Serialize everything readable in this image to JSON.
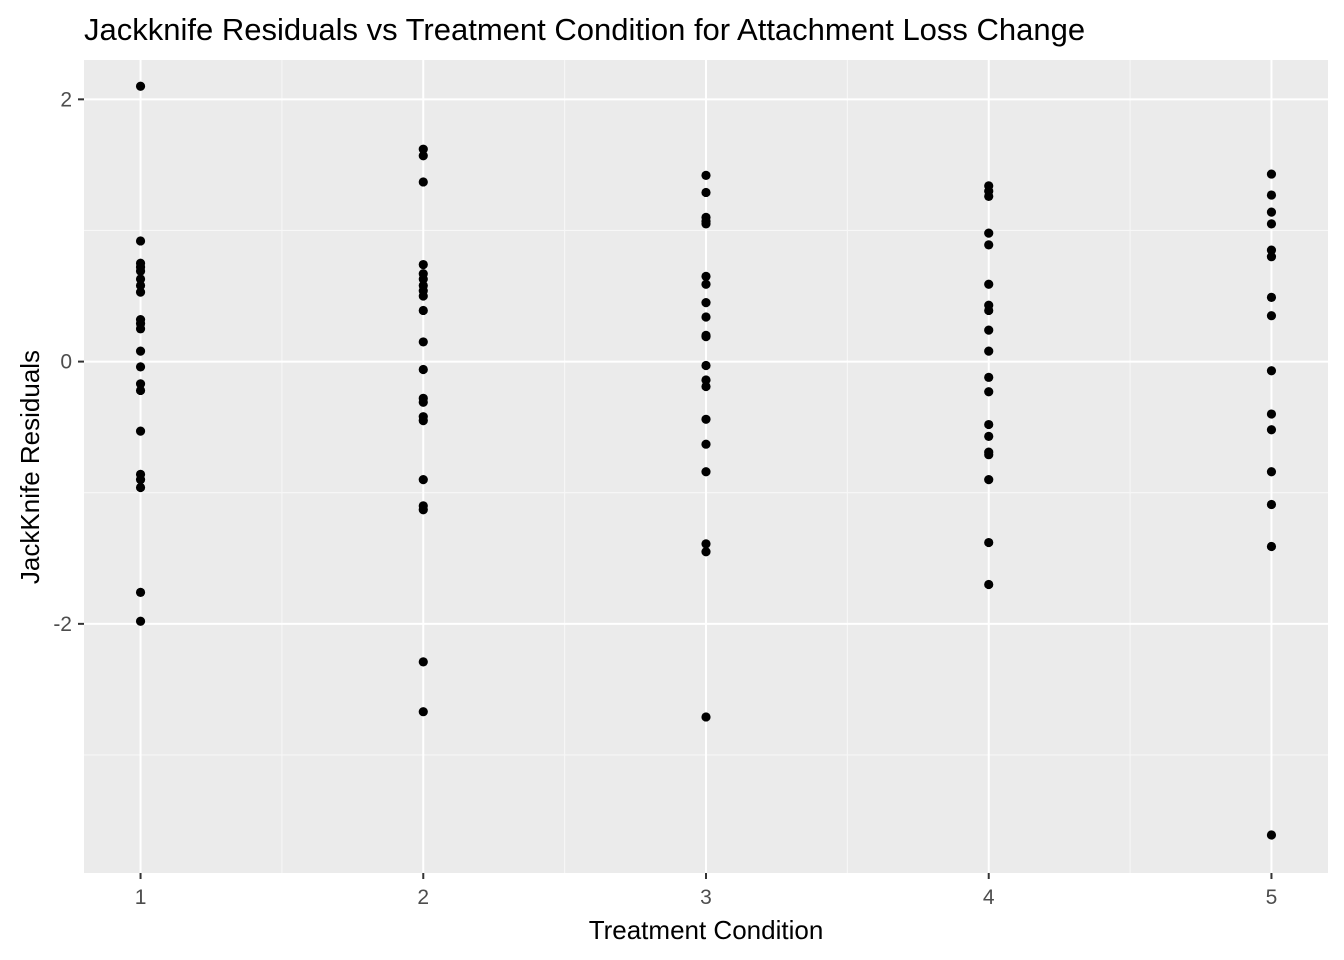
{
  "chart_data": {
    "type": "scatter",
    "title": "Jackknife Residuals vs Treatment Condition for Attachment Loss Change",
    "xlabel": "Treatment Condition",
    "ylabel": "JackKnife Residuals",
    "xlim": [
      0.8,
      5.2
    ],
    "ylim": [
      -3.9,
      2.3
    ],
    "x_ticks": [
      1,
      2,
      3,
      4,
      5
    ],
    "x_tick_labels": [
      "1",
      "2",
      "3",
      "4",
      "5"
    ],
    "y_ticks": [
      -2,
      0,
      2
    ],
    "y_tick_labels": [
      "-2",
      "0",
      "2"
    ],
    "grid": true,
    "legend": "none",
    "colors": {
      "panel_background": "#ebebeb",
      "grid_major": "#ffffff",
      "grid_minor": "#f7f7f7",
      "point": "#000000",
      "tick_text": "#4d4d4d"
    },
    "points": [
      {
        "x": 1,
        "y": 2.1
      },
      {
        "x": 1,
        "y": 0.92
      },
      {
        "x": 1,
        "y": 0.75
      },
      {
        "x": 1,
        "y": 0.72
      },
      {
        "x": 1,
        "y": 0.69
      },
      {
        "x": 1,
        "y": 0.63
      },
      {
        "x": 1,
        "y": 0.58
      },
      {
        "x": 1,
        "y": 0.53
      },
      {
        "x": 1,
        "y": 0.32
      },
      {
        "x": 1,
        "y": 0.29
      },
      {
        "x": 1,
        "y": 0.25
      },
      {
        "x": 1,
        "y": 0.08
      },
      {
        "x": 1,
        "y": -0.04
      },
      {
        "x": 1,
        "y": -0.17
      },
      {
        "x": 1,
        "y": -0.22
      },
      {
        "x": 1,
        "y": -0.53
      },
      {
        "x": 1,
        "y": -0.86
      },
      {
        "x": 1,
        "y": -0.9
      },
      {
        "x": 1,
        "y": -0.96
      },
      {
        "x": 1,
        "y": -1.76
      },
      {
        "x": 1,
        "y": -1.98
      },
      {
        "x": 2,
        "y": 1.62
      },
      {
        "x": 2,
        "y": 1.57
      },
      {
        "x": 2,
        "y": 1.37
      },
      {
        "x": 2,
        "y": 0.74
      },
      {
        "x": 2,
        "y": 0.67
      },
      {
        "x": 2,
        "y": 0.63
      },
      {
        "x": 2,
        "y": 0.58
      },
      {
        "x": 2,
        "y": 0.54
      },
      {
        "x": 2,
        "y": 0.5
      },
      {
        "x": 2,
        "y": 0.39
      },
      {
        "x": 2,
        "y": 0.15
      },
      {
        "x": 2,
        "y": -0.06
      },
      {
        "x": 2,
        "y": -0.28
      },
      {
        "x": 2,
        "y": -0.31
      },
      {
        "x": 2,
        "y": -0.42
      },
      {
        "x": 2,
        "y": -0.45
      },
      {
        "x": 2,
        "y": -0.9
      },
      {
        "x": 2,
        "y": -1.1
      },
      {
        "x": 2,
        "y": -1.13
      },
      {
        "x": 2,
        "y": -2.29
      },
      {
        "x": 2,
        "y": -2.67
      },
      {
        "x": 3,
        "y": 1.42
      },
      {
        "x": 3,
        "y": 1.29
      },
      {
        "x": 3,
        "y": 1.1
      },
      {
        "x": 3,
        "y": 1.07
      },
      {
        "x": 3,
        "y": 1.05
      },
      {
        "x": 3,
        "y": 0.65
      },
      {
        "x": 3,
        "y": 0.59
      },
      {
        "x": 3,
        "y": 0.45
      },
      {
        "x": 3,
        "y": 0.34
      },
      {
        "x": 3,
        "y": 0.2
      },
      {
        "x": 3,
        "y": 0.19
      },
      {
        "x": 3,
        "y": -0.03
      },
      {
        "x": 3,
        "y": -0.14
      },
      {
        "x": 3,
        "y": -0.19
      },
      {
        "x": 3,
        "y": -0.44
      },
      {
        "x": 3,
        "y": -0.63
      },
      {
        "x": 3,
        "y": -0.84
      },
      {
        "x": 3,
        "y": -1.39
      },
      {
        "x": 3,
        "y": -1.45
      },
      {
        "x": 3,
        "y": -2.71
      },
      {
        "x": 4,
        "y": 1.34
      },
      {
        "x": 4,
        "y": 1.3
      },
      {
        "x": 4,
        "y": 1.26
      },
      {
        "x": 4,
        "y": 0.98
      },
      {
        "x": 4,
        "y": 0.89
      },
      {
        "x": 4,
        "y": 0.59
      },
      {
        "x": 4,
        "y": 0.43
      },
      {
        "x": 4,
        "y": 0.39
      },
      {
        "x": 4,
        "y": 0.24
      },
      {
        "x": 4,
        "y": 0.08
      },
      {
        "x": 4,
        "y": -0.12
      },
      {
        "x": 4,
        "y": -0.23
      },
      {
        "x": 4,
        "y": -0.48
      },
      {
        "x": 4,
        "y": -0.57
      },
      {
        "x": 4,
        "y": -0.69
      },
      {
        "x": 4,
        "y": -0.71
      },
      {
        "x": 4,
        "y": -0.9
      },
      {
        "x": 4,
        "y": -1.38
      },
      {
        "x": 4,
        "y": -1.7
      },
      {
        "x": 5,
        "y": 1.43
      },
      {
        "x": 5,
        "y": 1.27
      },
      {
        "x": 5,
        "y": 1.14
      },
      {
        "x": 5,
        "y": 1.05
      },
      {
        "x": 5,
        "y": 0.85
      },
      {
        "x": 5,
        "y": 0.8
      },
      {
        "x": 5,
        "y": 0.49
      },
      {
        "x": 5,
        "y": 0.35
      },
      {
        "x": 5,
        "y": -0.07
      },
      {
        "x": 5,
        "y": -0.4
      },
      {
        "x": 5,
        "y": -0.52
      },
      {
        "x": 5,
        "y": -0.84
      },
      {
        "x": 5,
        "y": -1.09
      },
      {
        "x": 5,
        "y": -1.41
      },
      {
        "x": 5,
        "y": -3.61
      }
    ]
  }
}
